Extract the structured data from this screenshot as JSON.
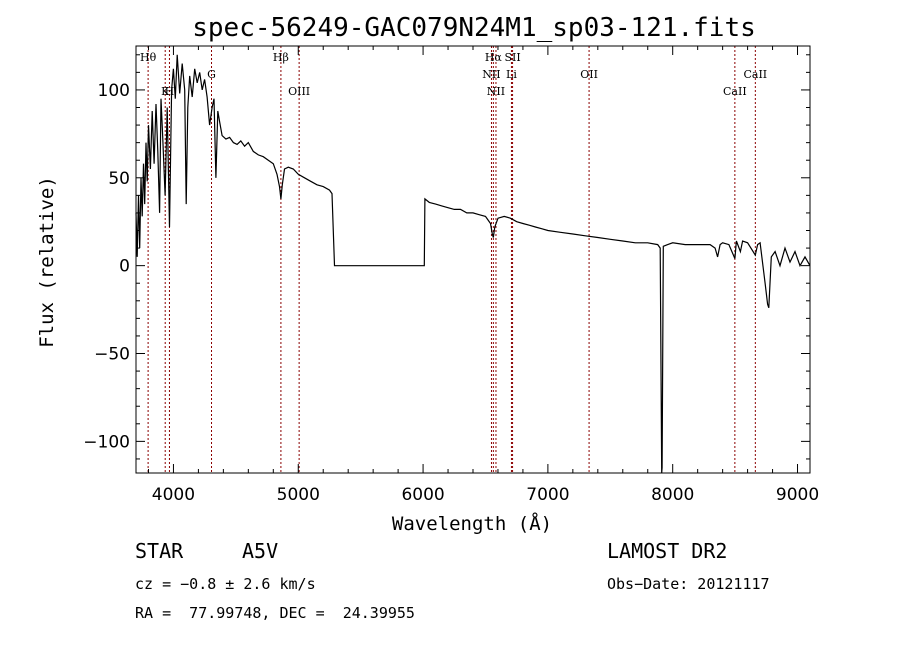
{
  "chart_data": {
    "type": "line",
    "title": "spec-56249-GAC079N24M1_sp03-121.fits",
    "xlabel": "Wavelength (Å)",
    "ylabel": "Flux (relative)",
    "xlim": [
      3700,
      9100
    ],
    "ylim": [
      -118,
      125
    ],
    "x_ticks": [
      4000,
      5000,
      6000,
      7000,
      8000,
      9000
    ],
    "y_ticks": [
      -100,
      -50,
      0,
      50,
      100
    ],
    "x_tick_labels": [
      "4000",
      "5000",
      "6000",
      "7000",
      "8000",
      "9000"
    ],
    "y_tick_labels": [
      "−100",
      "−50",
      "0",
      "50",
      "100"
    ],
    "grid": false,
    "series": [
      {
        "color": "#000000",
        "points": [
          [
            3700,
            30
          ],
          [
            3710,
            5
          ],
          [
            3720,
            40
          ],
          [
            3730,
            10
          ],
          [
            3740,
            50
          ],
          [
            3750,
            28
          ],
          [
            3760,
            58
          ],
          [
            3770,
            35
          ],
          [
            3780,
            70
          ],
          [
            3790,
            48
          ],
          [
            3800,
            80
          ],
          [
            3815,
            55
          ],
          [
            3830,
            88
          ],
          [
            3845,
            58
          ],
          [
            3860,
            92
          ],
          [
            3875,
            65
          ],
          [
            3889,
            30
          ],
          [
            3900,
            95
          ],
          [
            3915,
            72
          ],
          [
            3933,
            40
          ],
          [
            3950,
            90
          ],
          [
            3968,
            22
          ],
          [
            3985,
            100
          ],
          [
            4000,
            112
          ],
          [
            4015,
            95
          ],
          [
            4030,
            120
          ],
          [
            4050,
            98
          ],
          [
            4070,
            115
          ],
          [
            4090,
            100
          ],
          [
            4102,
            35
          ],
          [
            4115,
            90
          ],
          [
            4130,
            108
          ],
          [
            4150,
            96
          ],
          [
            4170,
            112
          ],
          [
            4190,
            104
          ],
          [
            4210,
            110
          ],
          [
            4230,
            100
          ],
          [
            4250,
            106
          ],
          [
            4270,
            96
          ],
          [
            4290,
            80
          ],
          [
            4310,
            90
          ],
          [
            4325,
            95
          ],
          [
            4340,
            50
          ],
          [
            4355,
            88
          ],
          [
            4370,
            82
          ],
          [
            4390,
            74
          ],
          [
            4420,
            72
          ],
          [
            4450,
            73
          ],
          [
            4480,
            70
          ],
          [
            4510,
            69
          ],
          [
            4540,
            71
          ],
          [
            4570,
            68
          ],
          [
            4600,
            70
          ],
          [
            4640,
            65
          ],
          [
            4680,
            63
          ],
          [
            4720,
            62
          ],
          [
            4760,
            60
          ],
          [
            4800,
            58
          ],
          [
            4830,
            52
          ],
          [
            4850,
            45
          ],
          [
            4861,
            38
          ],
          [
            4872,
            46
          ],
          [
            4890,
            55
          ],
          [
            4920,
            56
          ],
          [
            4960,
            55
          ],
          [
            5000,
            52
          ],
          [
            5050,
            50
          ],
          [
            5100,
            48
          ],
          [
            5150,
            46
          ],
          [
            5200,
            45
          ],
          [
            5250,
            43
          ],
          [
            5270,
            41
          ],
          [
            5290,
            0
          ],
          [
            5600,
            0
          ],
          [
            6000,
            0
          ],
          [
            6010,
            0
          ],
          [
            6015,
            38
          ],
          [
            6050,
            36
          ],
          [
            6100,
            35
          ],
          [
            6150,
            34
          ],
          [
            6200,
            33
          ],
          [
            6250,
            32
          ],
          [
            6300,
            32
          ],
          [
            6350,
            30
          ],
          [
            6400,
            30
          ],
          [
            6450,
            29
          ],
          [
            6500,
            28
          ],
          [
            6540,
            24
          ],
          [
            6555,
            18
          ],
          [
            6563,
            16
          ],
          [
            6575,
            22
          ],
          [
            6600,
            27
          ],
          [
            6650,
            28
          ],
          [
            6700,
            27
          ],
          [
            6750,
            25
          ],
          [
            6800,
            24
          ],
          [
            6850,
            23
          ],
          [
            6900,
            22
          ],
          [
            6950,
            21
          ],
          [
            7000,
            20
          ],
          [
            7100,
            19
          ],
          [
            7200,
            18
          ],
          [
            7300,
            17
          ],
          [
            7400,
            16
          ],
          [
            7500,
            15
          ],
          [
            7600,
            14
          ],
          [
            7700,
            13
          ],
          [
            7800,
            13
          ],
          [
            7880,
            12
          ],
          [
            7900,
            10
          ],
          [
            7912,
            -118
          ],
          [
            7915,
            -115
          ],
          [
            7925,
            11
          ],
          [
            7960,
            12
          ],
          [
            8000,
            13
          ],
          [
            8100,
            12
          ],
          [
            8200,
            12
          ],
          [
            8300,
            12
          ],
          [
            8340,
            10
          ],
          [
            8360,
            5
          ],
          [
            8380,
            12
          ],
          [
            8400,
            13
          ],
          [
            8450,
            12
          ],
          [
            8498,
            4
          ],
          [
            8510,
            14
          ],
          [
            8542,
            8
          ],
          [
            8560,
            14
          ],
          [
            8600,
            13
          ],
          [
            8662,
            6
          ],
          [
            8680,
            12
          ],
          [
            8700,
            13
          ],
          [
            8740,
            -10
          ],
          [
            8760,
            -22
          ],
          [
            8770,
            -24
          ],
          [
            8790,
            5
          ],
          [
            8820,
            8
          ],
          [
            8860,
            0
          ],
          [
            8900,
            10
          ],
          [
            8940,
            2
          ],
          [
            8980,
            8
          ],
          [
            9020,
            0
          ],
          [
            9060,
            5
          ],
          [
            9100,
            0
          ]
        ]
      }
    ],
    "lines": [
      {
        "label": "Hθ",
        "x": 3797,
        "row": "top"
      },
      {
        "label": "H",
        "x": 3968,
        "row": "second"
      },
      {
        "label": "K",
        "x": 3934,
        "row": "second"
      },
      {
        "label": "G",
        "x": 4305,
        "row": "mid"
      },
      {
        "label": "Hβ",
        "x": 4861,
        "row": "top"
      },
      {
        "label": "OIII",
        "x": 5007,
        "row": "second"
      },
      {
        "label": "Hα",
        "x": 6563,
        "row": "top"
      },
      {
        "label": "NII",
        "x": 6548,
        "row": "mid"
      },
      {
        "label": "NII",
        "x": 6584,
        "row": "second"
      },
      {
        "label": "SII",
        "x": 6717,
        "row": "top"
      },
      {
        "label": "Li",
        "x": 6708,
        "row": "mid"
      },
      {
        "label": "OII",
        "x": 7330,
        "row": "mid"
      },
      {
        "label": "CaII",
        "x": 8498,
        "row": "second"
      },
      {
        "label": "CaII",
        "x": 8662,
        "row": "mid"
      }
    ]
  },
  "info": {
    "object_class": "STAR",
    "subclass": "A5V",
    "survey": "LAMOST DR2",
    "cz": "cz = −0.8 ± 2.6 km/s",
    "obs_date": "Obs−Date: 20121117",
    "coords": "RA =  77.99748, DEC =  24.39955"
  },
  "colors": {
    "line_marker": "#8b0000",
    "spectrum": "#000000",
    "text": "#000000"
  }
}
